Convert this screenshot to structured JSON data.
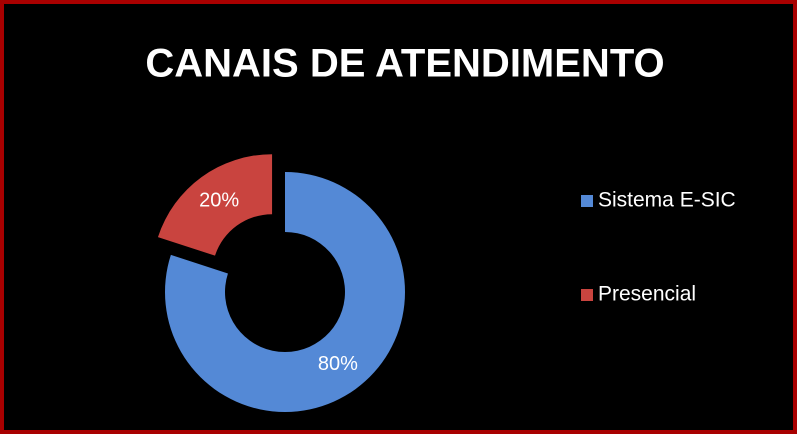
{
  "chart_data": {
    "type": "donut",
    "title": "CANAIS DE ATENDIMENTO",
    "categories": [
      "Sistema E-SIC",
      "Presencial"
    ],
    "values": [
      80,
      20
    ],
    "value_labels": [
      "80%",
      "20%"
    ],
    "colors": [
      "#5489d6",
      "#c9443f"
    ],
    "legend": "right"
  }
}
